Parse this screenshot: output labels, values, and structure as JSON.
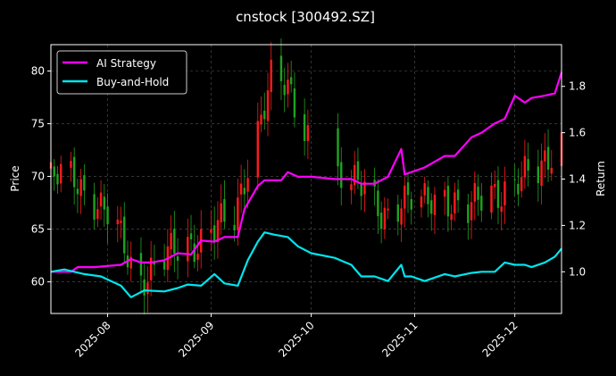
{
  "chart_data": {
    "type": "line",
    "title": "cnstock [300492.SZ]",
    "left_axis": {
      "label": "Price",
      "ylim": [
        57,
        82.5
      ],
      "ticks": [
        60,
        65,
        70,
        75,
        80
      ]
    },
    "right_axis": {
      "label": "Return",
      "ylim": [
        0.82,
        1.98
      ],
      "ticks": [
        "1.0",
        "1.2",
        "1.4",
        "1.6",
        "1.8"
      ],
      "tick_values": [
        1.0,
        1.2,
        1.4,
        1.6,
        1.8
      ]
    },
    "x_axis": {
      "start": "2025-07-15",
      "end": "2025-12-15",
      "ticks": [
        "2025-08",
        "2025-09",
        "2025-10",
        "2025-11",
        "2025-12"
      ],
      "tick_dates": [
        "2025-08-01",
        "2025-09-01",
        "2025-10-01",
        "2025-11-01",
        "2025-12-01"
      ]
    },
    "grid": true,
    "legend": {
      "position": "top-left",
      "entries": [
        "AI Strategy",
        "Buy-and-Hold"
      ]
    },
    "colors": {
      "ai": "#ff00ff",
      "bh": "#00e5ee",
      "up": "#ff1a1a",
      "down": "#1fa31f",
      "grid": "#555555",
      "axis": "#ffffff"
    },
    "series": [
      {
        "name": "AI Strategy",
        "x": [
          "2025-07-15",
          "2025-07-21",
          "2025-07-23",
          "2025-07-28",
          "2025-08-05",
          "2025-08-08",
          "2025-08-11",
          "2025-08-14",
          "2025-08-18",
          "2025-08-22",
          "2025-08-26",
          "2025-08-29",
          "2025-09-02",
          "2025-09-05",
          "2025-09-09",
          "2025-09-11",
          "2025-09-15",
          "2025-09-17",
          "2025-09-22",
          "2025-09-24",
          "2025-09-27",
          "2025-10-01",
          "2025-10-08",
          "2025-10-13",
          "2025-10-16",
          "2025-10-20",
          "2025-10-24",
          "2025-10-28",
          "2025-10-29",
          "2025-10-31",
          "2025-11-04",
          "2025-11-10",
          "2025-11-13",
          "2025-11-18",
          "2025-11-21",
          "2025-11-25",
          "2025-11-28",
          "2025-12-01",
          "2025-12-04",
          "2025-12-06",
          "2025-12-10",
          "2025-12-13",
          "2025-12-15"
        ],
        "values": [
          1.0,
          1.0,
          1.02,
          1.02,
          1.03,
          1.055,
          1.04,
          1.04,
          1.05,
          1.08,
          1.075,
          1.135,
          1.13,
          1.15,
          1.15,
          1.27,
          1.37,
          1.395,
          1.395,
          1.43,
          1.41,
          1.41,
          1.4,
          1.4,
          1.38,
          1.38,
          1.41,
          1.53,
          1.42,
          1.43,
          1.45,
          1.5,
          1.5,
          1.58,
          1.6,
          1.64,
          1.66,
          1.76,
          1.73,
          1.75,
          1.76,
          1.77,
          1.86
        ]
      },
      {
        "name": "Buy-and-Hold",
        "x": [
          "2025-07-15",
          "2025-07-19",
          "2025-07-22",
          "2025-07-25",
          "2025-07-30",
          "2025-08-05",
          "2025-08-08",
          "2025-08-12",
          "2025-08-18",
          "2025-08-22",
          "2025-08-25",
          "2025-08-29",
          "2025-09-02",
          "2025-09-05",
          "2025-09-09",
          "2025-09-12",
          "2025-09-15",
          "2025-09-17",
          "2025-09-20",
          "2025-09-24",
          "2025-09-27",
          "2025-10-01",
          "2025-10-08",
          "2025-10-13",
          "2025-10-16",
          "2025-10-20",
          "2025-10-24",
          "2025-10-28",
          "2025-10-29",
          "2025-10-31",
          "2025-11-04",
          "2025-11-10",
          "2025-11-13",
          "2025-11-18",
          "2025-11-21",
          "2025-11-25",
          "2025-11-28",
          "2025-12-01",
          "2025-12-04",
          "2025-12-06",
          "2025-12-10",
          "2025-12-13",
          "2025-12-15"
        ],
        "values": [
          1.0,
          1.01,
          1.0,
          0.99,
          0.98,
          0.94,
          0.89,
          0.92,
          0.915,
          0.93,
          0.945,
          0.94,
          0.99,
          0.95,
          0.94,
          1.05,
          1.13,
          1.17,
          1.16,
          1.15,
          1.11,
          1.08,
          1.06,
          1.03,
          0.98,
          0.98,
          0.96,
          1.03,
          0.98,
          0.98,
          0.96,
          0.99,
          0.98,
          0.995,
          1.0,
          1.0,
          1.04,
          1.03,
          1.03,
          1.02,
          1.04,
          1.065,
          1.1
        ]
      }
    ]
  }
}
